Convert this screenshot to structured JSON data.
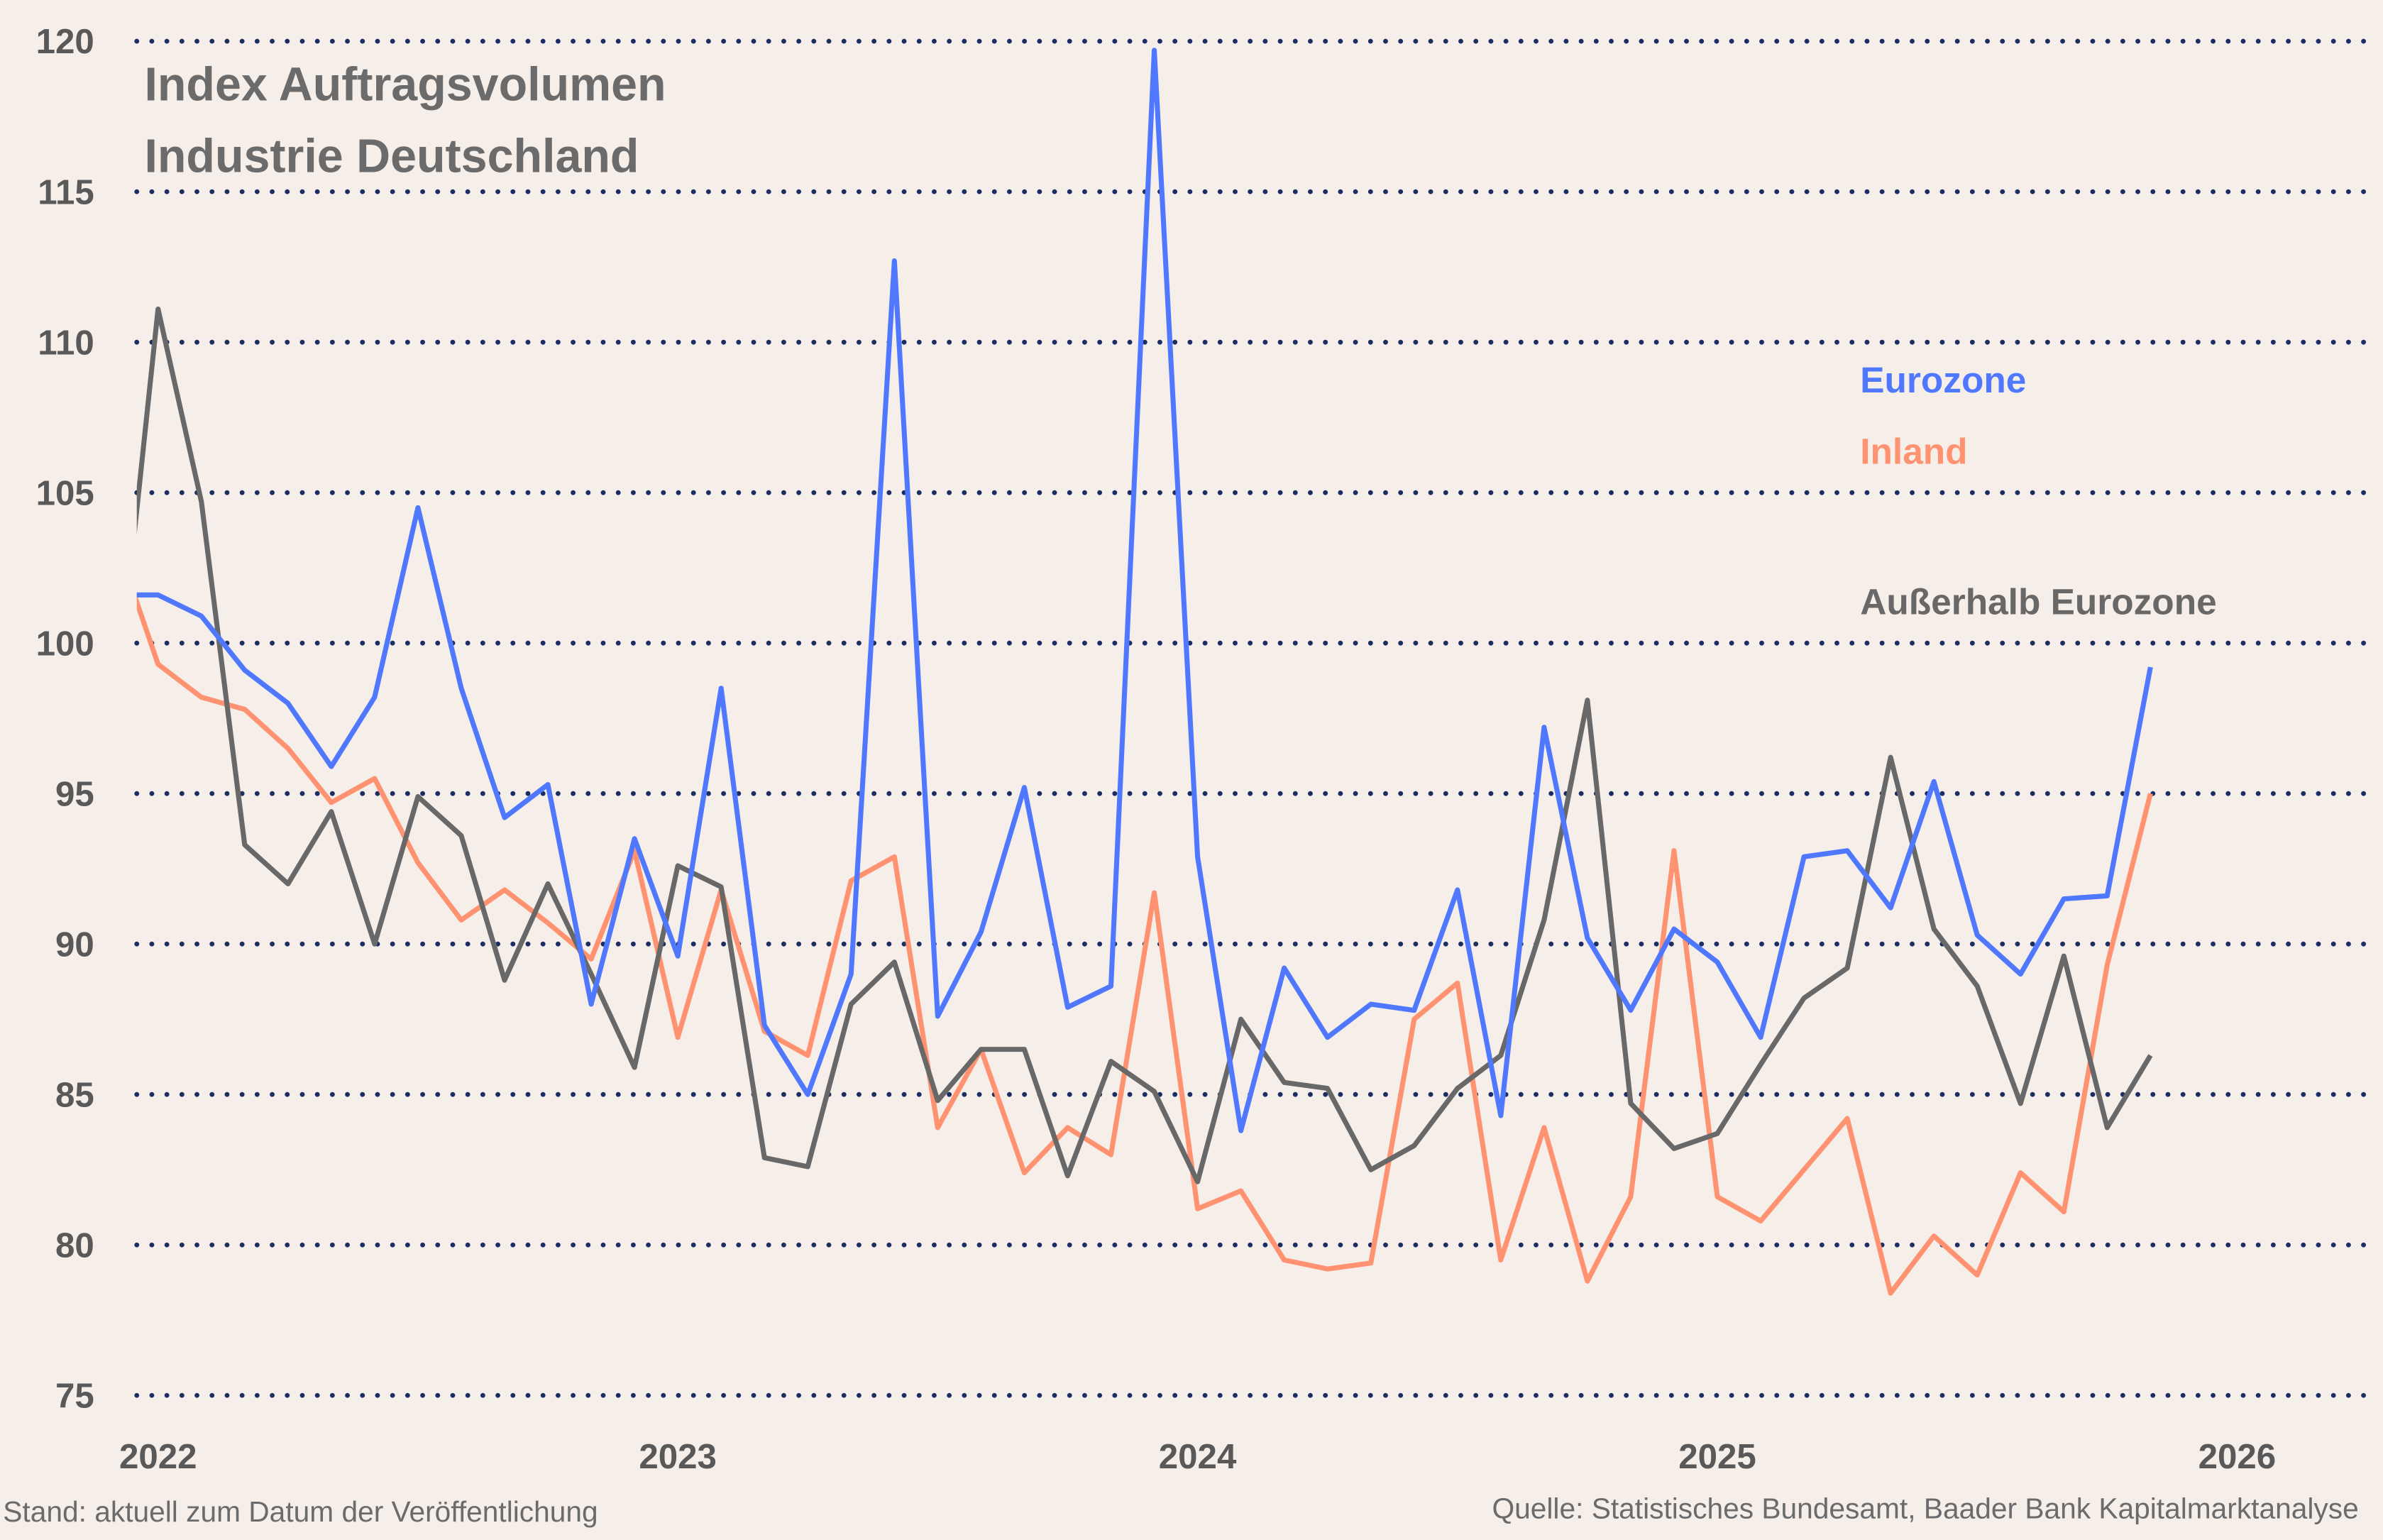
{
  "chart_data": {
    "type": "line",
    "title": "Index Auftragsvolumen",
    "subtitle": "Industrie Deutschland",
    "xlabel": "",
    "ylabel": "",
    "ylim": [
      75,
      120
    ],
    "yticks": [
      75,
      80,
      85,
      90,
      95,
      100,
      105,
      110,
      115,
      120
    ],
    "xticks": [
      "2022",
      "2023",
      "2024",
      "2025",
      "2026"
    ],
    "grid": "horizontal dotted",
    "legend_placement": "right (inline labels)",
    "x": [
      "2021-12",
      "2022-01",
      "2022-02",
      "2022-03",
      "2022-04",
      "2022-05",
      "2022-06",
      "2022-07",
      "2022-08",
      "2022-09",
      "2022-10",
      "2022-11",
      "2022-12",
      "2023-01",
      "2023-02",
      "2023-03",
      "2023-04",
      "2023-05",
      "2023-06",
      "2023-07",
      "2023-08",
      "2023-09",
      "2023-10",
      "2023-11",
      "2023-12",
      "2024-01",
      "2024-02",
      "2024-03",
      "2024-04",
      "2024-05",
      "2024-06",
      "2024-07",
      "2024-08",
      "2024-09",
      "2024-10",
      "2024-11",
      "2024-12",
      "2025-01",
      "2025-02",
      "2025-03",
      "2025-04",
      "2025-05",
      "2025-06",
      "2025-07",
      "2025-08",
      "2025-09",
      "2025-10",
      "2025-11"
    ],
    "series": [
      {
        "name": "Eurozone",
        "color": "#4f78ff",
        "values": [
          101.6,
          101.6,
          100.9,
          99.1,
          98.0,
          95.9,
          98.2,
          104.5,
          98.5,
          94.2,
          95.3,
          88.0,
          93.5,
          89.6,
          98.5,
          87.3,
          85.0,
          89.0,
          112.7,
          87.6,
          90.4,
          95.2,
          87.9,
          88.6,
          119.7,
          92.9,
          83.8,
          89.2,
          86.9,
          88.0,
          87.8,
          91.8,
          84.3,
          97.2,
          90.2,
          87.8,
          90.5,
          89.4,
          86.9,
          92.9,
          93.1,
          91.2,
          95.4,
          90.3,
          89.0,
          91.5,
          91.6,
          99.2
        ]
      },
      {
        "name": "Inland",
        "color": "#ff9270",
        "values": [
          103.5,
          99.3,
          98.2,
          97.8,
          96.5,
          94.7,
          95.5,
          92.7,
          90.8,
          91.8,
          90.7,
          89.5,
          93.1,
          86.9,
          91.8,
          87.1,
          86.3,
          92.1,
          92.9,
          83.9,
          86.5,
          82.4,
          83.9,
          83.0,
          91.7,
          81.2,
          81.8,
          79.5,
          79.2,
          79.4,
          87.5,
          88.7,
          79.5,
          83.9,
          78.8,
          81.6,
          93.1,
          81.6,
          80.8,
          82.5,
          84.2,
          78.4,
          80.3,
          79.0,
          82.4,
          81.1,
          89.3,
          95.0
        ]
      },
      {
        "name": "Außerhalb Eurozone",
        "color": "#686868",
        "values": [
          97.5,
          111.1,
          104.7,
          93.3,
          92.0,
          94.4,
          90.0,
          94.9,
          93.6,
          88.8,
          92.0,
          89.0,
          85.9,
          92.6,
          91.9,
          82.9,
          82.6,
          88.0,
          89.4,
          84.8,
          86.5,
          86.5,
          82.3,
          86.1,
          85.1,
          82.1,
          87.5,
          85.4,
          85.2,
          82.5,
          83.3,
          85.2,
          86.3,
          90.8,
          98.1,
          84.7,
          83.2,
          83.7,
          86.0,
          88.2,
          89.2,
          96.2,
          90.5,
          88.6,
          84.7,
          89.6,
          83.9,
          86.3
        ]
      }
    ]
  },
  "footer": {
    "left": "Stand: aktuell zum Datum der Veröffentlichung",
    "right": "Quelle: Statistisches Bundesamt, Baader Bank Kapitalmarktanalyse"
  }
}
